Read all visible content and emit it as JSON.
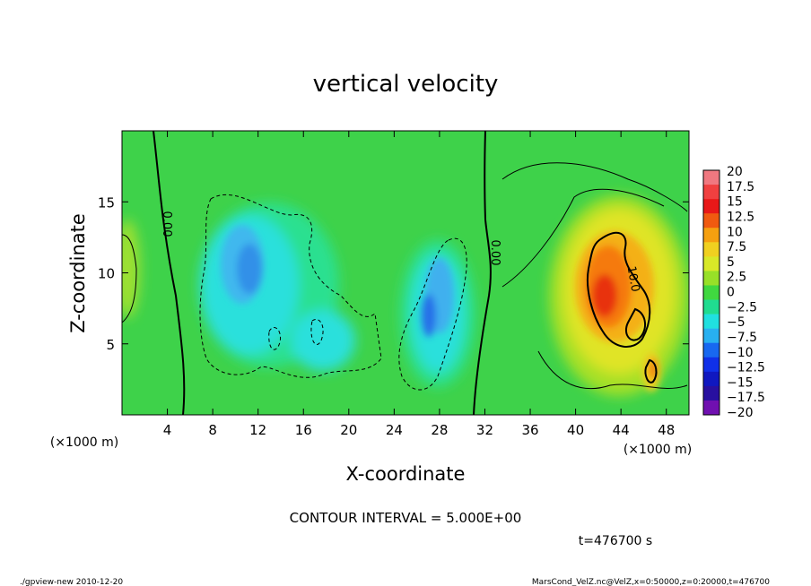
{
  "chart_data": {
    "type": "heatmap",
    "title": "vertical velocity",
    "xlabel": "X-coordinate",
    "ylabel": "Z-coordinate",
    "x_unit": "(×1000 m)",
    "z_unit": "(×1000 m)",
    "xlim": [
      0,
      50
    ],
    "ylim": [
      0,
      20
    ],
    "x_ticks": [
      4,
      8,
      12,
      16,
      20,
      24,
      28,
      32,
      36,
      40,
      44,
      48
    ],
    "y_ticks": [
      5,
      10,
      15
    ],
    "colorbar": {
      "levels": [
        "20",
        "17.5",
        "15",
        "12.5",
        "10",
        "7.5",
        "5",
        "2.5",
        "0",
        "-2.5",
        "-5",
        "-7.5",
        "-10",
        "-12.5",
        "-15",
        "-17.5",
        "-20"
      ],
      "colors": [
        "#f07880",
        "#f04040",
        "#e81818",
        "#f05a10",
        "#f5a010",
        "#f0d020",
        "#d8e828",
        "#98e028",
        "#40d840",
        "#20dc90",
        "#20e0e0",
        "#28b0f0",
        "#1868f0",
        "#1030e8",
        "#1018c0",
        "#2810a0",
        "#7010b0"
      ]
    },
    "contour_labels": [
      "0.00",
      "0.00",
      "10.0"
    ],
    "contour_interval": "CONTOUR INTERVAL = 5.000E+00",
    "time": "t=476700 s"
  },
  "footer": {
    "left": "./gpview-new  2010-12-20",
    "right": "MarsCond_VelZ.nc@VelZ,x=0:50000,z=0:20000,t=476700"
  }
}
